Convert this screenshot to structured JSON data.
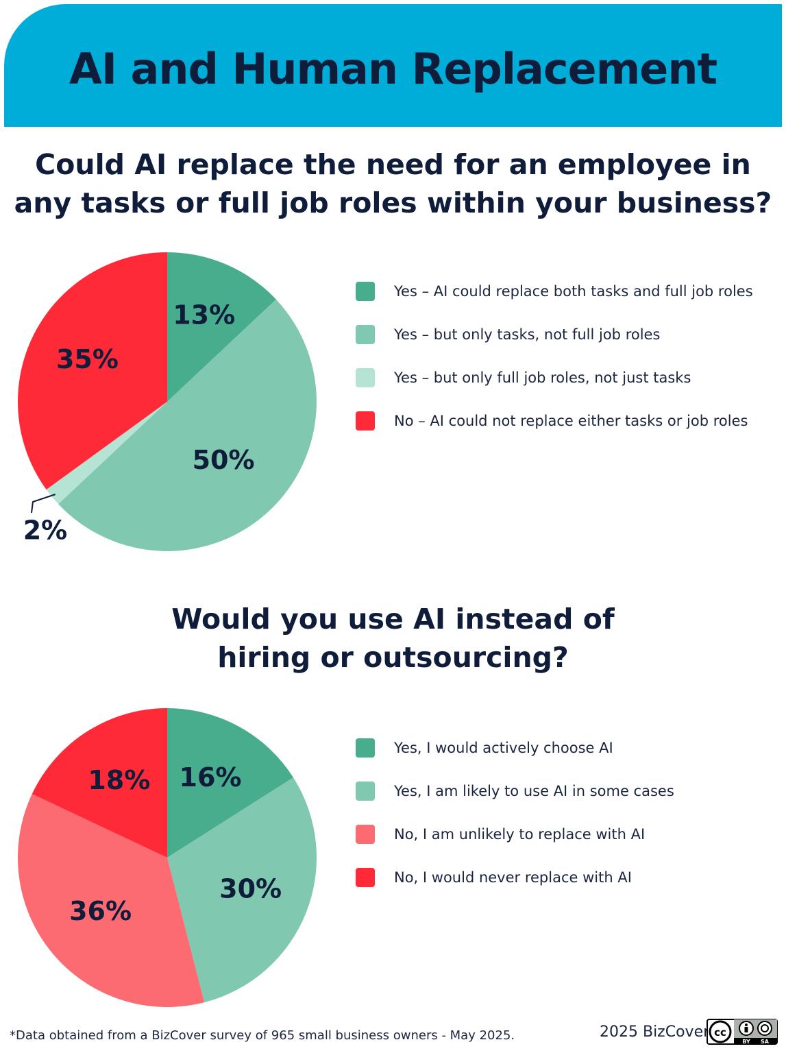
{
  "header": {
    "title": "AI and Human Replacement",
    "background_color": "#00acd8"
  },
  "questions": [
    {
      "title_lines": [
        "Could AI replace the need for an employee in",
        "any tasks or full job roles within your business?"
      ]
    },
    {
      "title_lines": [
        "Would you use AI instead of",
        "hiring or outsourcing?"
      ]
    }
  ],
  "chart_data": [
    {
      "type": "pie",
      "slices": [
        {
          "label": "Yes – AI could replace both tasks and full job roles",
          "value": 13,
          "display": "13%",
          "color": "#47ad8d"
        },
        {
          "label": "Yes – but only tasks, not full job roles",
          "value": 50,
          "display": "50%",
          "color": "#80c8b0"
        },
        {
          "label": "Yes – but only full job roles, not just tasks",
          "value": 2,
          "display": "2%",
          "color": "#b6e4d4"
        },
        {
          "label": "No – AI could not replace either tasks or job roles",
          "value": 35,
          "display": "35%",
          "color": "#fe2a38"
        }
      ]
    },
    {
      "type": "pie",
      "slices": [
        {
          "label": "Yes, I would actively choose AI",
          "value": 16,
          "display": "16%",
          "color": "#47ad8d"
        },
        {
          "label": "Yes, I am likely to use AI in some cases",
          "value": 30,
          "display": "30%",
          "color": "#80c8b0"
        },
        {
          "label": "No, I am unlikely to replace with AI",
          "value": 36,
          "display": "36%",
          "color": "#fd6b72"
        },
        {
          "label": "No, I would never replace with AI",
          "value": 18,
          "display": "18%",
          "color": "#fe2a38"
        }
      ]
    }
  ],
  "footer": {
    "footnote": "*Data obtained from a BizCover survey of 965 small business owners - May 2025.",
    "copyright": "2025 BizCover",
    "license_badge": {
      "labels": [
        "BY",
        "SA"
      ],
      "icon": "creative-commons-icon"
    }
  }
}
